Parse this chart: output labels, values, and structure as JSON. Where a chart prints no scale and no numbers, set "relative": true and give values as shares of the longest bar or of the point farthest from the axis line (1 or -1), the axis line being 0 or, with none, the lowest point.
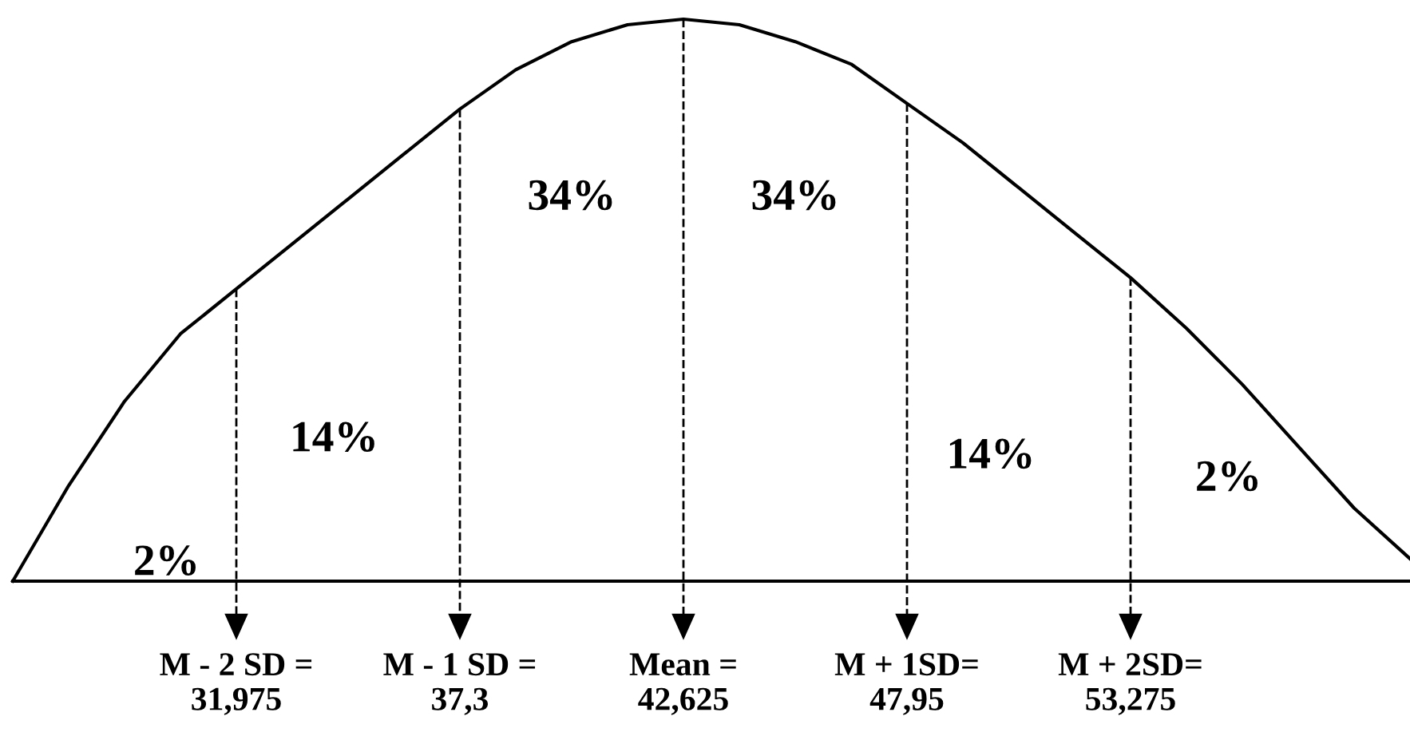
{
  "chart_data": {
    "type": "line",
    "relative": true,
    "color": "#000000",
    "categories": [
      null,
      null,
      null,
      null,
      "M - 2 SD =\n31,975",
      null,
      null,
      null,
      "M - 1 SD =\n37,3",
      null,
      null,
      null,
      "Mean =\n42,625",
      null,
      null,
      null,
      "M + 1SD=\n47,95",
      null,
      null,
      null,
      "M + 2SD=\n53,275",
      null,
      null,
      null,
      null,
      null
    ],
    "values": [
      0,
      0.17,
      0.32,
      0.44,
      0.52,
      0.6,
      0.68,
      0.76,
      0.84,
      0.91,
      0.96,
      0.99,
      1,
      0.99,
      0.96,
      0.92,
      0.85,
      0.78,
      0.7,
      0.62,
      0.54,
      0.45,
      0.35,
      0.24,
      0.13,
      0.04
    ],
    "tick_labels": "x",
    "grid": "x",
    "marker": "none",
    "line_style": "solid",
    "annotations": [
      "2%",
      "14%",
      "34%",
      "34%",
      "14%",
      "2%"
    ]
  }
}
